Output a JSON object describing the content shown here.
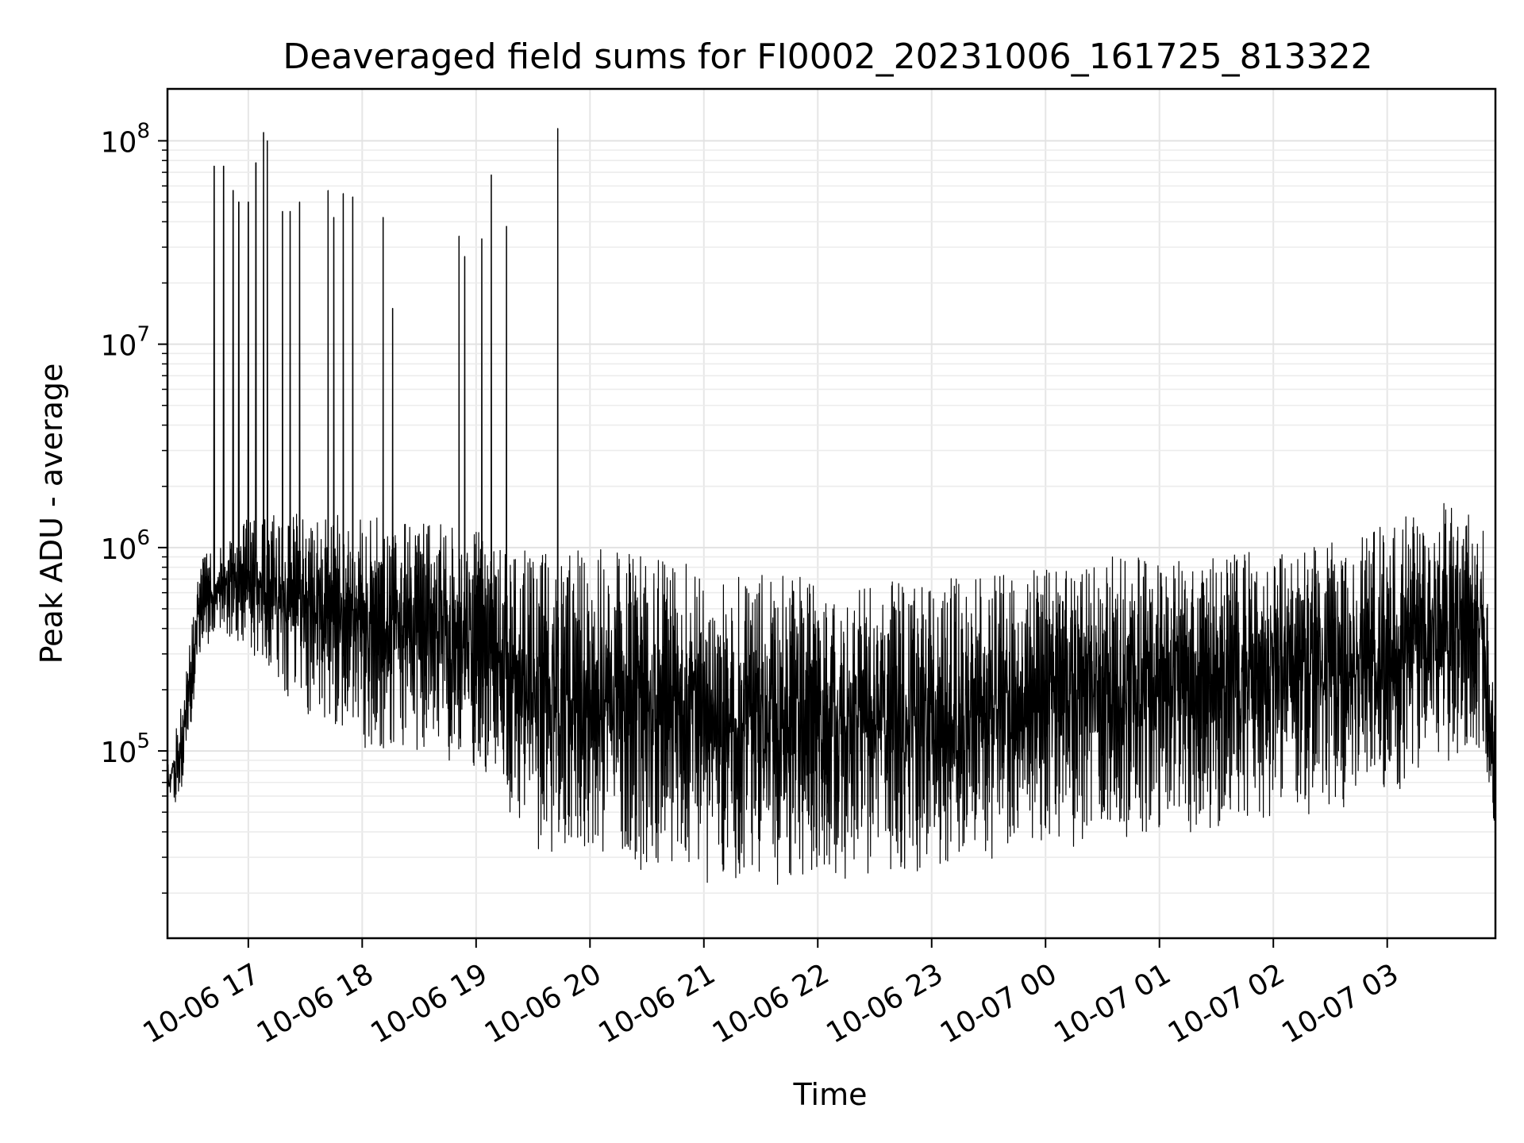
{
  "chart_data": {
    "type": "line",
    "title": "Deaveraged field sums for FI0002_20231006_161725_813322",
    "xlabel": "Time",
    "ylabel": "Peak ADU - average",
    "x_range": [
      "2023-10-06 16:17:25",
      "2023-10-07 03:57:00"
    ],
    "y_scale": "log",
    "ylim": [
      12000,
      180000000
    ],
    "grid": "on (major and minor, light gray)",
    "legend": "none",
    "x_ticks": [
      "10-06 17",
      "10-06 18",
      "10-06 19",
      "10-06 20",
      "10-06 21",
      "10-06 22",
      "10-06 23",
      "10-07 00",
      "10-07 01",
      "10-07 02",
      "10-07 03"
    ],
    "y_ticks": [
      {
        "base": "10",
        "exp": "5",
        "value": 100000
      },
      {
        "base": "10",
        "exp": "6",
        "value": 1000000
      },
      {
        "base": "10",
        "exp": "7",
        "value": 10000000
      },
      {
        "base": "10",
        "exp": "8",
        "value": 100000000
      }
    ],
    "line_color": "#000000",
    "series_envelope": {
      "description_x": "time (2023-10-06 16:17:25 onward)",
      "points": [
        {
          "t": "10-06 16:17",
          "low": 50000,
          "high": 80000
        },
        {
          "t": "10-06 16:25",
          "low": 60000,
          "high": 170000
        },
        {
          "t": "10-06 16:35",
          "low": 300000,
          "high": 900000
        },
        {
          "t": "10-06 16:45",
          "low": 400000,
          "high": 1000000
        },
        {
          "t": "10-06 17:00",
          "low": 300000,
          "high": 1400000
        },
        {
          "t": "10-06 17:30",
          "low": 150000,
          "high": 1500000
        },
        {
          "t": "10-06 18:00",
          "low": 100000,
          "high": 1400000
        },
        {
          "t": "10-06 18:30",
          "low": 100000,
          "high": 1400000
        },
        {
          "t": "10-06 19:00",
          "low": 80000,
          "high": 1200000
        },
        {
          "t": "10-06 19:30",
          "low": 30000,
          "high": 1000000
        },
        {
          "t": "10-06 20:00",
          "low": 30000,
          "high": 1000000
        },
        {
          "t": "10-06 20:30",
          "low": 25000,
          "high": 900000
        },
        {
          "t": "10-06 21:00",
          "low": 22000,
          "high": 800000
        },
        {
          "t": "10-06 21:30",
          "low": 22000,
          "high": 750000
        },
        {
          "t": "10-06 22:00",
          "low": 22000,
          "high": 700000
        },
        {
          "t": "10-06 22:30",
          "low": 25000,
          "high": 700000
        },
        {
          "t": "10-06 23:00",
          "low": 25000,
          "high": 700000
        },
        {
          "t": "10-06 23:30",
          "low": 28000,
          "high": 750000
        },
        {
          "t": "10-07 00:00",
          "low": 30000,
          "high": 800000
        },
        {
          "t": "10-07 00:30",
          "low": 35000,
          "high": 900000
        },
        {
          "t": "10-07 01:00",
          "low": 40000,
          "high": 900000
        },
        {
          "t": "10-07 01:30",
          "low": 40000,
          "high": 900000
        },
        {
          "t": "10-07 02:00",
          "low": 45000,
          "high": 1000000
        },
        {
          "t": "10-07 02:30",
          "low": 50000,
          "high": 1100000
        },
        {
          "t": "10-07 03:00",
          "low": 60000,
          "high": 1300000
        },
        {
          "t": "10-07 03:30",
          "low": 80000,
          "high": 1700000
        },
        {
          "t": "10-07 03:50",
          "low": 100000,
          "high": 1500000
        },
        {
          "t": "10-07 03:57",
          "low": 25000,
          "high": 150000
        }
      ]
    },
    "notable_peaks": [
      {
        "t": "10-06 16:42",
        "y": 75000000
      },
      {
        "t": "10-06 16:47",
        "y": 75000000
      },
      {
        "t": "10-06 16:52",
        "y": 57000000
      },
      {
        "t": "10-06 16:55",
        "y": 50000000
      },
      {
        "t": "10-06 17:00",
        "y": 50000000
      },
      {
        "t": "10-06 17:04",
        "y": 78000000
      },
      {
        "t": "10-06 17:08",
        "y": 110000000
      },
      {
        "t": "10-06 17:10",
        "y": 100000000
      },
      {
        "t": "10-06 17:18",
        "y": 45000000
      },
      {
        "t": "10-06 17:22",
        "y": 45000000
      },
      {
        "t": "10-06 17:27",
        "y": 50000000
      },
      {
        "t": "10-06 17:42",
        "y": 57000000
      },
      {
        "t": "10-06 17:45",
        "y": 42000000
      },
      {
        "t": "10-06 17:50",
        "y": 55000000
      },
      {
        "t": "10-06 17:55",
        "y": 53000000
      },
      {
        "t": "10-06 18:11",
        "y": 42000000
      },
      {
        "t": "10-06 18:16",
        "y": 15000000
      },
      {
        "t": "10-06 18:51",
        "y": 34000000
      },
      {
        "t": "10-06 18:54",
        "y": 27000000
      },
      {
        "t": "10-06 19:03",
        "y": 33000000
      },
      {
        "t": "10-06 19:08",
        "y": 68000000
      },
      {
        "t": "10-06 19:16",
        "y": 38000000
      },
      {
        "t": "10-06 19:43",
        "y": 115000000
      }
    ]
  }
}
